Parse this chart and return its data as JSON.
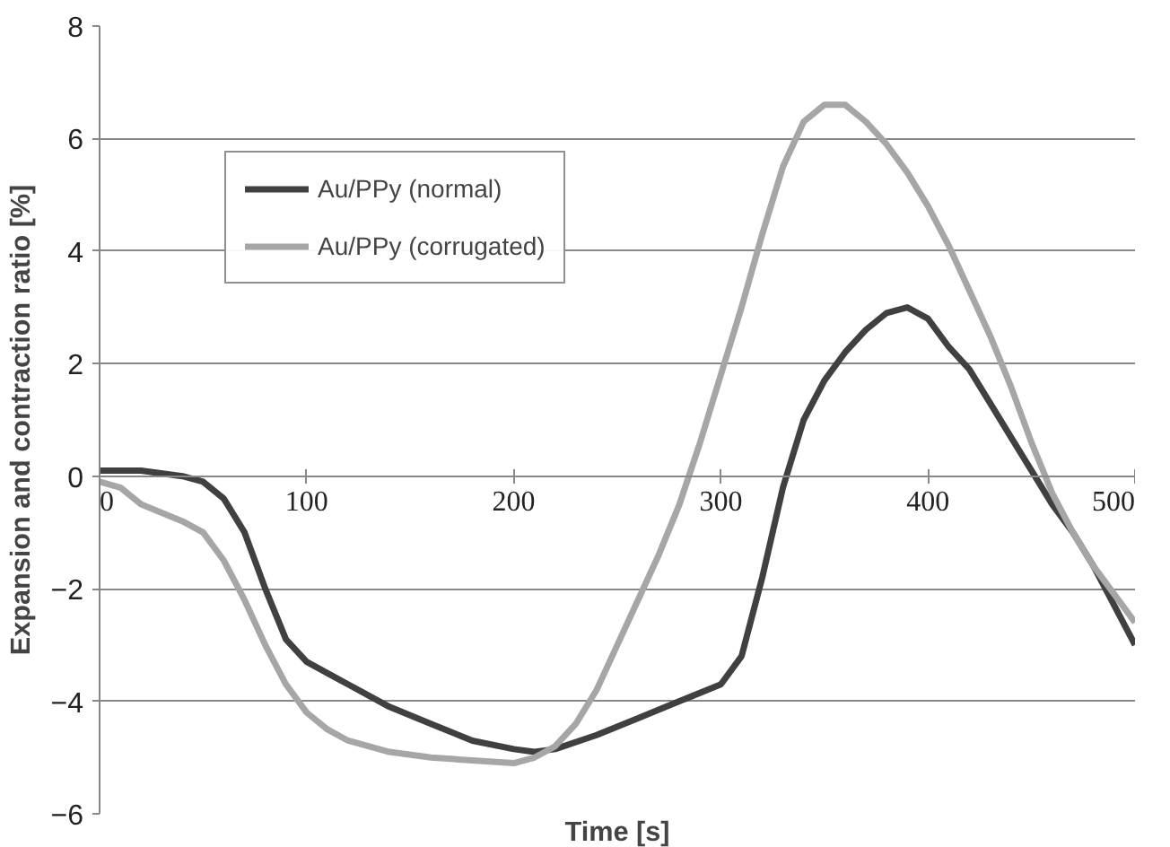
{
  "chart_data": {
    "type": "line",
    "xlabel": "Time [s]",
    "ylabel": "Expansion and contraction ratio [%]",
    "xlim": [
      0,
      500
    ],
    "xticks": [
      0,
      100,
      200,
      300,
      400,
      500
    ],
    "ylim": [
      -6,
      8
    ],
    "yticks": [
      -6,
      -4,
      -2,
      0,
      2,
      4,
      6,
      8
    ],
    "grid": "y",
    "legend": "top left",
    "marker": "none",
    "line_style": "solid",
    "series": [
      {
        "name": "Au/PPy (normal)",
        "color": "#404040",
        "x": [
          0,
          20,
          40,
          50,
          60,
          70,
          80,
          90,
          100,
          120,
          140,
          160,
          180,
          200,
          210,
          220,
          240,
          260,
          280,
          300,
          310,
          320,
          330,
          340,
          350,
          360,
          370,
          380,
          390,
          400,
          410,
          420,
          430,
          440,
          450,
          460,
          470,
          480,
          490,
          500
        ],
        "values": [
          0.1,
          0.1,
          0,
          -0.1,
          -0.4,
          -1.0,
          -2.0,
          -2.9,
          -3.3,
          -3.7,
          -4.1,
          -4.4,
          -4.7,
          -4.85,
          -4.9,
          -4.85,
          -4.6,
          -4.3,
          -4.0,
          -3.7,
          -3.2,
          -1.8,
          -0.2,
          1.0,
          1.7,
          2.2,
          2.6,
          2.9,
          3.0,
          2.8,
          2.3,
          1.9,
          1.3,
          0.7,
          0.1,
          -0.5,
          -1.0,
          -1.6,
          -2.3,
          -3.0
        ]
      },
      {
        "name": "Au/PPy (corrugated)",
        "color": "#a6a6a6",
        "x": [
          0,
          10,
          20,
          40,
          50,
          60,
          70,
          80,
          90,
          100,
          110,
          120,
          140,
          160,
          180,
          200,
          210,
          220,
          230,
          240,
          250,
          260,
          270,
          280,
          290,
          300,
          310,
          320,
          330,
          340,
          350,
          360,
          370,
          380,
          390,
          400,
          410,
          420,
          430,
          440,
          450,
          460,
          470,
          480,
          490,
          500
        ],
        "values": [
          -0.1,
          -0.2,
          -0.5,
          -0.8,
          -1.0,
          -1.5,
          -2.2,
          -3.0,
          -3.7,
          -4.2,
          -4.5,
          -4.7,
          -4.9,
          -5.0,
          -5.05,
          -5.1,
          -5.0,
          -4.8,
          -4.4,
          -3.8,
          -3.0,
          -2.2,
          -1.4,
          -0.5,
          0.6,
          1.8,
          3.0,
          4.3,
          5.5,
          6.3,
          6.6,
          6.6,
          6.3,
          5.9,
          5.4,
          4.8,
          4.1,
          3.3,
          2.5,
          1.6,
          0.6,
          -0.3,
          -1.0,
          -1.6,
          -2.1,
          -2.6
        ]
      }
    ]
  }
}
